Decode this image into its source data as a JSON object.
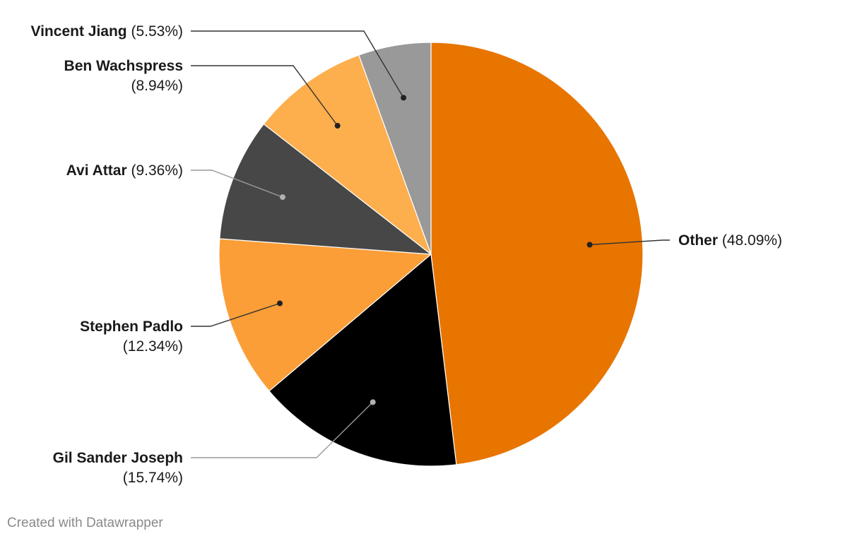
{
  "chart_data": {
    "type": "pie",
    "start_angle_deg": 0,
    "direction": "clockwise",
    "slices": [
      {
        "name": "Other",
        "value": 48.09,
        "display": "(48.09%)",
        "color": "#e87500"
      },
      {
        "name": "Gil Sander Joseph",
        "value": 15.74,
        "display": "(15.74%)",
        "color": "#000000"
      },
      {
        "name": "Stephen Padlo",
        "value": 12.34,
        "display": "(12.34%)",
        "color": "#fb9e37"
      },
      {
        "name": "Avi Attar",
        "value": 9.36,
        "display": "(9.36%)",
        "color": "#474747"
      },
      {
        "name": "Ben Wachspress",
        "value": 8.94,
        "display": "(8.94%)",
        "color": "#fdae4d"
      },
      {
        "name": "Vincent Jiang",
        "value": 5.53,
        "display": "(5.53%)",
        "color": "#999999"
      }
    ]
  },
  "credit": "Created with Datawrapper"
}
